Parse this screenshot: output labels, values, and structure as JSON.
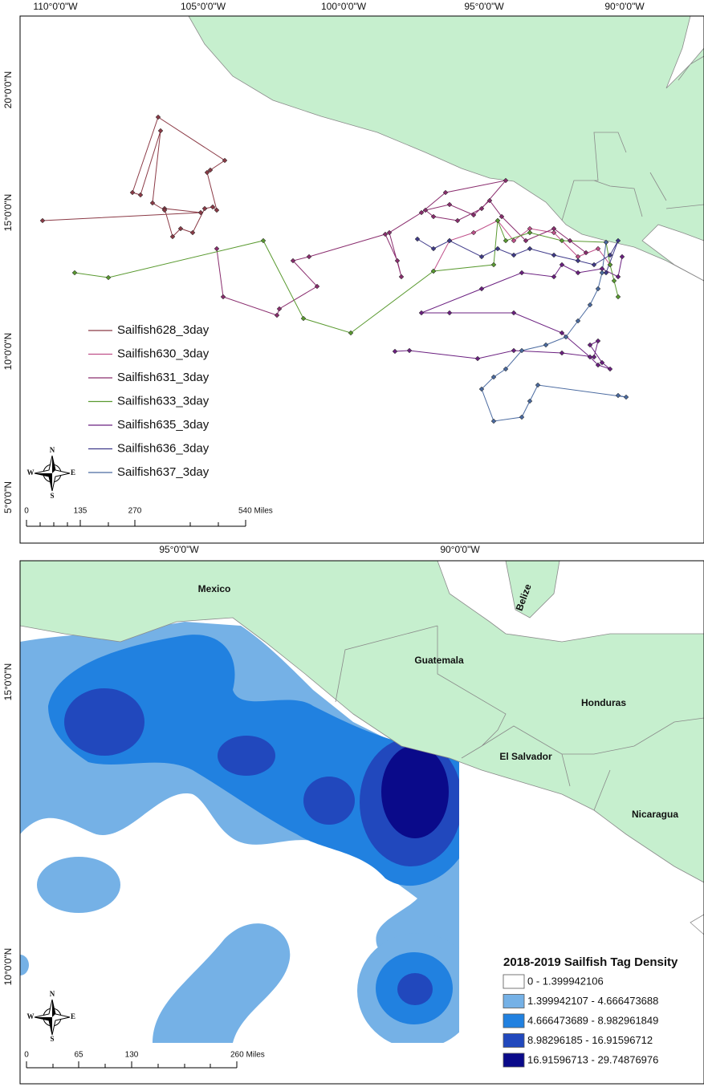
{
  "top_map": {
    "lon_labels": [
      "110°0'0\"W",
      "105°0'0\"W",
      "100°0'0\"W",
      "95°0'0\"W",
      "90°0'0\"W"
    ],
    "lat_labels": [
      "20°0'0\"N",
      "15°0'0\"N",
      "10°0'0\"N",
      "5°0'0\"N"
    ],
    "legend": [
      {
        "label": "Sailfish628_3day",
        "color": "#8b3a46"
      },
      {
        "label": "Sailfish630_3day",
        "color": "#c0508a"
      },
      {
        "label": "Sailfish631_3day",
        "color": "#8a2d6e"
      },
      {
        "label": "Sailfish633_3day",
        "color": "#5a9a30"
      },
      {
        "label": "Sailfish635_3day",
        "color": "#6b2080"
      },
      {
        "label": "Sailfish636_3day",
        "color": "#3f3a8a"
      },
      {
        "label": "Sailfish637_3day",
        "color": "#4a6aa0"
      }
    ],
    "scale_labels": [
      "0",
      "135",
      "270",
      "540 Miles"
    ],
    "compass": {
      "n": "N",
      "s": "S",
      "w": "W",
      "e": "E"
    }
  },
  "bottom_map": {
    "lon_labels": [
      "95°0'0\"W",
      "90°0'0\"W"
    ],
    "lat_labels": [
      "15°0'0\"N",
      "10°0'0\"N"
    ],
    "countries": [
      "Mexico",
      "Belize",
      "Guatemala",
      "Honduras",
      "El Salvador",
      "Nicaragua"
    ],
    "legend": {
      "title": "2018-2019 Sailfish Tag Density",
      "classes": [
        {
          "label": "0 - 1.399942106",
          "color": "#ffffff"
        },
        {
          "label": "1.399942107 - 4.666473688",
          "color": "#75b1e6"
        },
        {
          "label": "4.666473689 - 8.982961849",
          "color": "#2181e0"
        },
        {
          "label": "8.98296185 - 16.91596712",
          "color": "#2148bd"
        },
        {
          "label": "16.91596713 - 29.74876976",
          "color": "#0a0a8a"
        }
      ]
    },
    "scale_labels": [
      "0",
      "65",
      "130",
      "260 Miles"
    ],
    "compass": {
      "n": "N",
      "s": "S",
      "w": "W",
      "e": "E"
    }
  }
}
